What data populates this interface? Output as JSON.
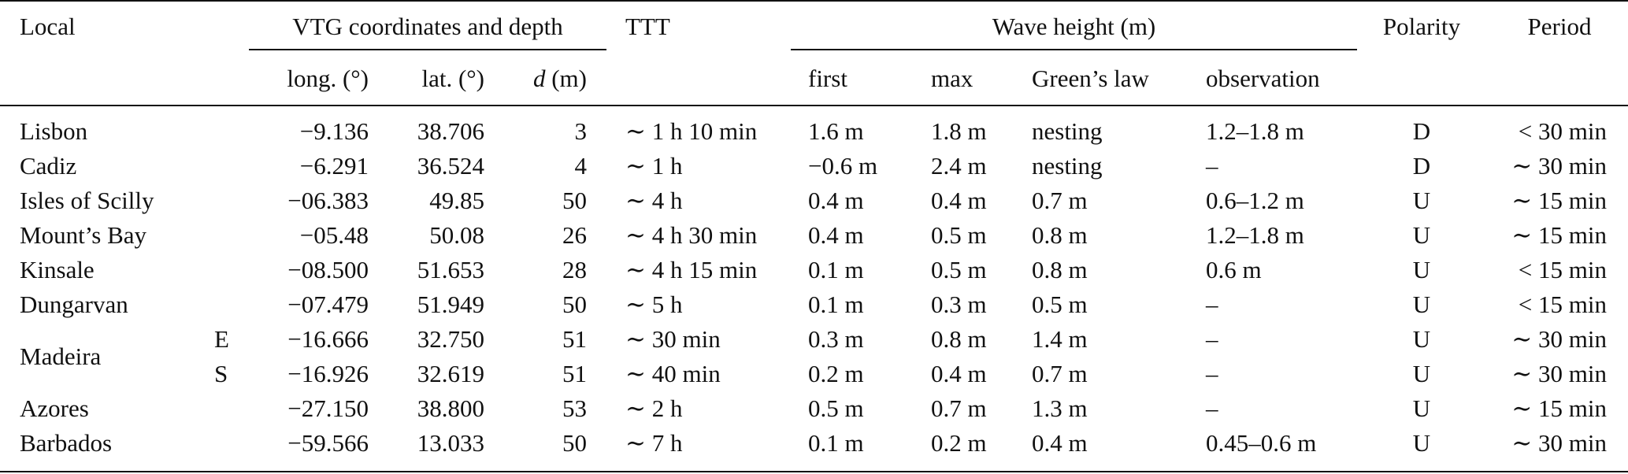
{
  "headers": {
    "local": "Local",
    "vtg_group": "VTG coordinates and depth",
    "ttt": "TTT",
    "wave_group": "Wave height (m)",
    "polarity": "Polarity",
    "period": "Period",
    "long": "long. (°)",
    "lat": "lat. (°)",
    "d_symbol": "d",
    "d_unit": " (m)",
    "first": "first",
    "max": "max",
    "greens_law": "Green’s law",
    "observation": "observation"
  },
  "rows": [
    {
      "local": "Lisbon",
      "sub": "",
      "long": "−9.136",
      "lat": "38.706",
      "d": "3",
      "ttt": "∼ 1 h 10 min",
      "first": "1.6 m",
      "max": "1.8 m",
      "greens": "nesting",
      "obs": "1.2–1.8 m",
      "polarity": "D",
      "period": "< 30 min"
    },
    {
      "local": "Cadiz",
      "sub": "",
      "long": "−6.291",
      "lat": "36.524",
      "d": "4",
      "ttt": "∼ 1 h",
      "first": "−0.6 m",
      "max": "2.4 m",
      "greens": "nesting",
      "obs": "–",
      "polarity": "D",
      "period": "∼ 30 min"
    },
    {
      "local": "Isles of Scilly",
      "sub": "",
      "long": "−06.383",
      "lat": "49.85",
      "d": "50",
      "ttt": "∼ 4 h",
      "first": "0.4 m",
      "max": "0.4 m",
      "greens": "0.7 m",
      "obs": "0.6–1.2 m",
      "polarity": "U",
      "period": "∼ 15 min"
    },
    {
      "local": "Mount’s Bay",
      "sub": "",
      "long": "−05.48",
      "lat": "50.08",
      "d": "26",
      "ttt": "∼ 4 h 30 min",
      "first": "0.4 m",
      "max": "0.5 m",
      "greens": "0.8 m",
      "obs": "1.2–1.8 m",
      "polarity": "U",
      "period": "∼ 15 min"
    },
    {
      "local": "Kinsale",
      "sub": "",
      "long": "−08.500",
      "lat": "51.653",
      "d": "28",
      "ttt": "∼ 4 h 15 min",
      "first": "0.1 m",
      "max": "0.5 m",
      "greens": "0.8 m",
      "obs": "0.6 m",
      "polarity": "U",
      "period": "< 15 min"
    },
    {
      "local": "Dungarvan",
      "sub": "",
      "long": "−07.479",
      "lat": "51.949",
      "d": "50",
      "ttt": "∼ 5 h",
      "first": "0.1 m",
      "max": "0.3 m",
      "greens": "0.5 m",
      "obs": "–",
      "polarity": "U",
      "period": "< 15 min"
    },
    {
      "local": "",
      "sub": "E",
      "long": "−16.666",
      "lat": "32.750",
      "d": "51",
      "ttt": "∼ 30 min",
      "first": "0.3 m",
      "max": "0.8 m",
      "greens": "1.4 m",
      "obs": "–",
      "polarity": "U",
      "period": "∼ 30 min"
    },
    {
      "local": "",
      "sub": "S",
      "long": "−16.926",
      "lat": "32.619",
      "d": "51",
      "ttt": "∼ 40 min",
      "first": "0.2 m",
      "max": "0.4 m",
      "greens": "0.7 m",
      "obs": "–",
      "polarity": "U",
      "period": "∼ 30 min"
    },
    {
      "local": "Azores",
      "sub": "",
      "long": "−27.150",
      "lat": "38.800",
      "d": "53",
      "ttt": "∼ 2 h",
      "first": "0.5 m",
      "max": "0.7 m",
      "greens": "1.3 m",
      "obs": "–",
      "polarity": "U",
      "period": "∼ 15 min"
    },
    {
      "local": "Barbados",
      "sub": "",
      "long": "−59.566",
      "lat": "13.033",
      "d": "50",
      "ttt": "∼ 7 h",
      "first": "0.1 m",
      "max": "0.2 m",
      "greens": "0.4 m",
      "obs": "0.45–0.6 m",
      "polarity": "U",
      "period": "∼ 30 min"
    }
  ],
  "merged": {
    "madeira": "Madeira"
  }
}
